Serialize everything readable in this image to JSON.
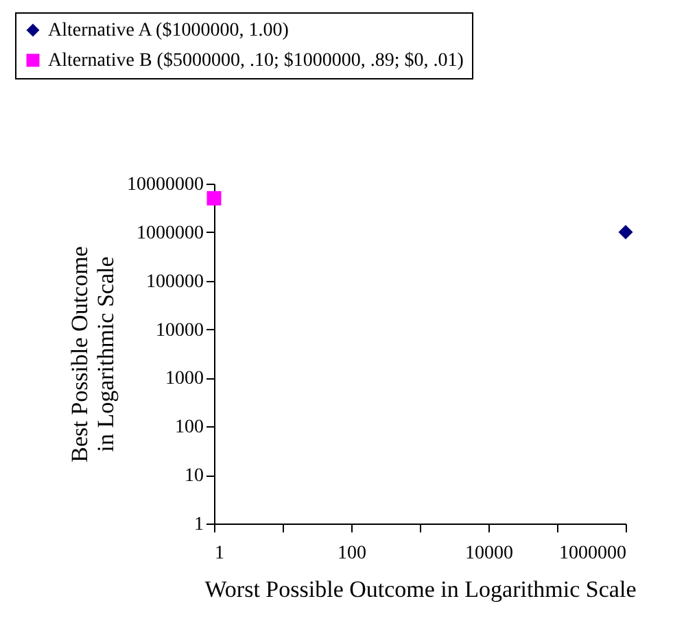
{
  "chart_data": {
    "type": "scatter",
    "xlabel": "Worst Possible Outcome in Logarithmic Scale",
    "ylabel": "Best Possible Outcome in Logarithmic Scale",
    "log": "xy",
    "grid": false,
    "legend": "top",
    "xlim": [
      1,
      1000000
    ],
    "ylim": [
      1,
      10000000
    ],
    "xticks": [
      1,
      {
        "value": 10,
        "label": null
      },
      100,
      {
        "value": 1000,
        "label": null
      },
      10000,
      {
        "value": 100000,
        "label": null
      },
      1000000
    ],
    "yticks": [
      1,
      10,
      100,
      1000,
      10000,
      100000,
      1000000,
      10000000
    ],
    "series": [
      {
        "name": "Alternative A ($1000000, 1.00)",
        "color": "#000080",
        "marker": "diamond",
        "x": [
          1000000
        ],
        "values": [
          1000000
        ]
      },
      {
        "name": "Alternative B ($5000000, .10; $1000000, .89; $0, .01)",
        "color": "#ff00ff",
        "marker": "square",
        "x": [
          1
        ],
        "values": [
          5000000
        ]
      }
    ]
  }
}
